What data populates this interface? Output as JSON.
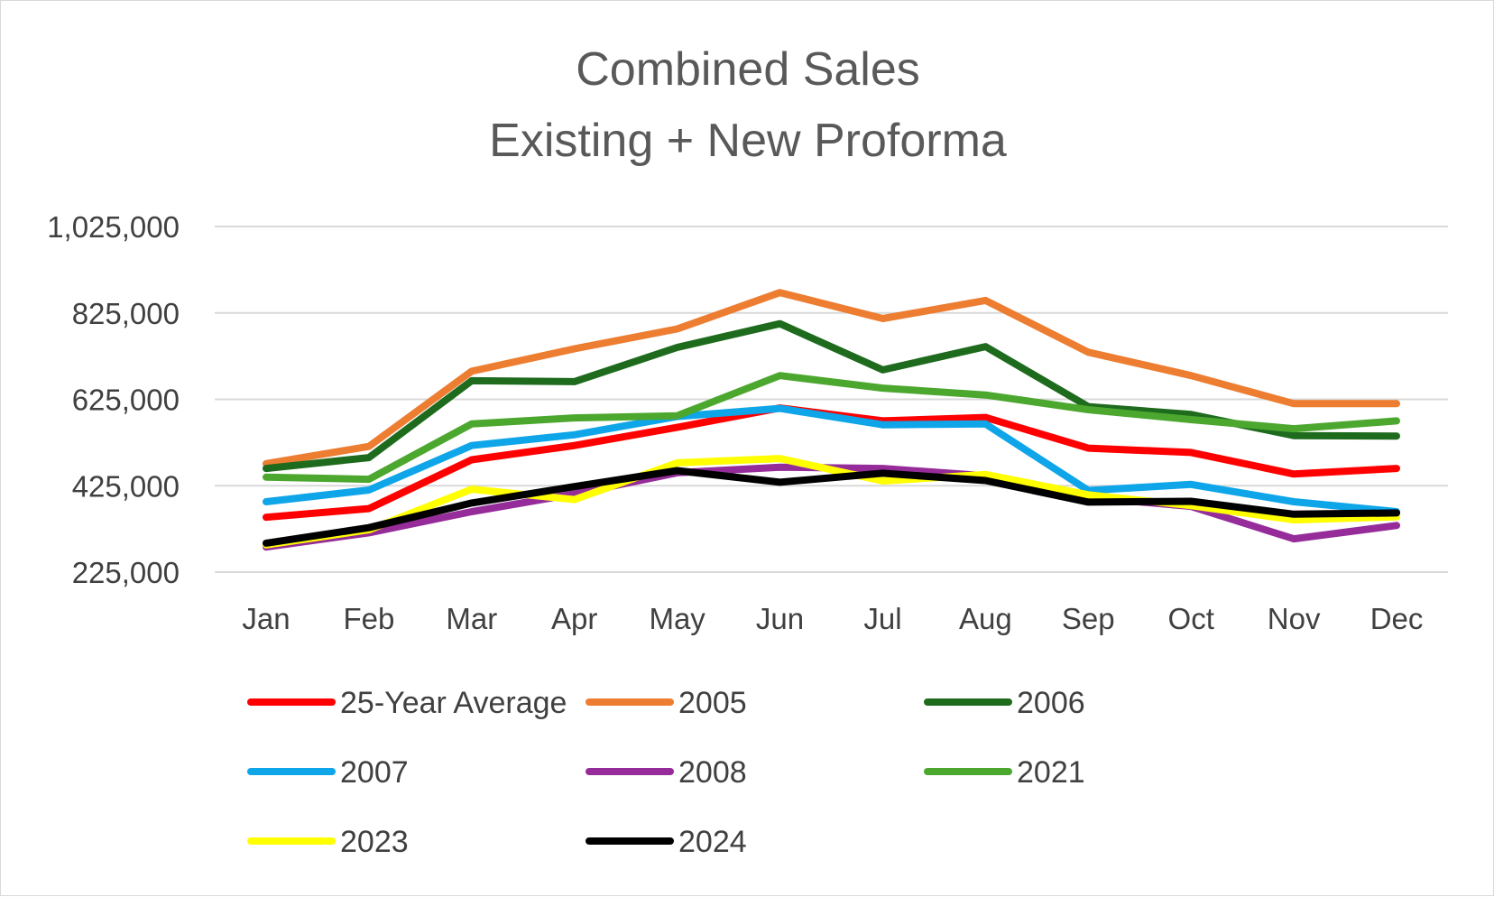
{
  "chart_data": {
    "type": "line",
    "title": [
      "Combined Sales",
      "Existing + New Proforma"
    ],
    "xlabel": "",
    "ylabel": "",
    "categories": [
      "Jan",
      "Feb",
      "Mar",
      "Apr",
      "May",
      "Jun",
      "Jul",
      "Aug",
      "Sep",
      "Oct",
      "Nov",
      "Dec"
    ],
    "y_ticks": [
      "1,025,000",
      "825,000",
      "625,000",
      "425,000",
      "225,000"
    ],
    "y_tick_values": [
      1025000,
      825000,
      625000,
      425000,
      225000
    ],
    "ylim": [
      225000,
      1025000
    ],
    "grid": true,
    "legend_position": "bottom",
    "series": [
      {
        "name": "25-Year Average",
        "color": "#ff0000",
        "values": [
          352000,
          372000,
          485000,
          518000,
          560000,
          605000,
          575000,
          583000,
          512000,
          502000,
          452000,
          465000
        ]
      },
      {
        "name": "2005",
        "color": "#ed7d31",
        "values": [
          476000,
          516000,
          690000,
          742000,
          788000,
          872000,
          812000,
          854000,
          734000,
          680000,
          615000,
          615000
        ]
      },
      {
        "name": "2006",
        "color": "#1e6b1e",
        "values": [
          465000,
          490000,
          668000,
          666000,
          745000,
          800000,
          693000,
          747000,
          608000,
          590000,
          541000,
          540000
        ]
      },
      {
        "name": "2007",
        "color": "#0ea5e9",
        "values": [
          388000,
          415000,
          518000,
          543000,
          585000,
          604000,
          566000,
          568000,
          414000,
          428000,
          388000,
          365000
        ]
      },
      {
        "name": "2008",
        "color": "#952c9a",
        "values": [
          283000,
          316000,
          365000,
          406000,
          455000,
          468000,
          465000,
          448000,
          398000,
          377000,
          302000,
          333000
        ]
      },
      {
        "name": "2021",
        "color": "#4ca72f",
        "values": [
          445000,
          440000,
          568000,
          582000,
          587000,
          680000,
          651000,
          635000,
          601000,
          578000,
          557000,
          575000
        ]
      },
      {
        "name": "2023",
        "color": "#ffff00",
        "values": [
          288000,
          323000,
          417000,
          393000,
          478000,
          488000,
          436000,
          451000,
          404000,
          379000,
          346000,
          353000
        ]
      },
      {
        "name": "2024",
        "color": "#000000",
        "values": [
          292000,
          328000,
          385000,
          423000,
          460000,
          433000,
          454000,
          437000,
          387000,
          389000,
          359000,
          362000
        ]
      }
    ]
  }
}
